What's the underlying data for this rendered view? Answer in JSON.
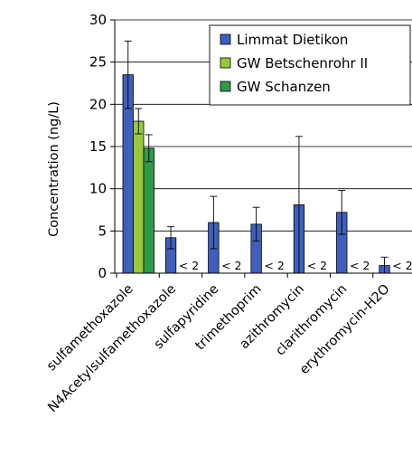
{
  "chart_data": {
    "type": "bar",
    "title": "",
    "ylabel": "Concentration (ng/L)",
    "xlabel": "",
    "ylim": [
      0,
      30
    ],
    "yticks": [
      0,
      5,
      10,
      15,
      20,
      25,
      30
    ],
    "grid": "horizontal",
    "legend": "top-right",
    "categories": [
      "sulfamethoxazole",
      "N4Acetylsulfamethoxazole",
      "sulfapyridine",
      "trimethoprim",
      "azithromycin",
      "clarithromycin",
      "erythromycin-H2O"
    ],
    "series": [
      {
        "name": "Limmat Dietikon",
        "color": "#3f5fbf",
        "values": [
          23.5,
          4.2,
          6.0,
          5.8,
          8.1,
          7.2,
          0.9
        ],
        "errors": [
          4.0,
          1.3,
          3.1,
          2.0,
          8.1,
          2.6,
          1.0
        ]
      },
      {
        "name": "GW Betschenrohr II",
        "color": "#9ac83c",
        "values": [
          18.0,
          null,
          null,
          null,
          null,
          null,
          null
        ],
        "errors": [
          1.5,
          null,
          null,
          null,
          null,
          null,
          null
        ]
      },
      {
        "name": "GW Schanzen",
        "color": "#2f9a4a",
        "values": [
          14.8,
          null,
          null,
          null,
          null,
          null,
          null
        ],
        "errors": [
          1.6,
          null,
          null,
          null,
          null,
          null,
          null
        ]
      }
    ],
    "below_lod_label": "< 2",
    "below_lod_categories": [
      1,
      2,
      3,
      4,
      5,
      6
    ]
  }
}
